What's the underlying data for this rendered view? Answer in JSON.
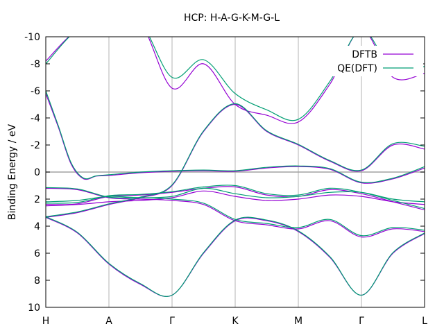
{
  "chart_data": {
    "type": "line",
    "title": "HCP: H-A-G-K-M-G-L",
    "ylabel": "Binding Energy / eV",
    "xlabel": "",
    "y_reversed": true,
    "ylim": [
      10,
      -10
    ],
    "y_ticks": [
      "-10",
      "-8",
      "-6",
      "-4",
      "-2",
      "0",
      "2",
      "4",
      "6",
      "8",
      "10"
    ],
    "x_ticks": [
      {
        "label": "H",
        "x": 0
      },
      {
        "label": "A",
        "x": 1
      },
      {
        "label": "Γ",
        "x": 2
      },
      {
        "label": "K",
        "x": 3
      },
      {
        "label": "M",
        "x": 4
      },
      {
        "label": "Γ",
        "x": 5
      },
      {
        "label": "L",
        "x": 6
      }
    ],
    "xlim": [
      0,
      6
    ],
    "grid": "vertical lines at high-symmetry points",
    "fermi_level": 0,
    "legend": {
      "placement": "top-right",
      "entries": [
        {
          "name": "DFTB",
          "color": "#9400d3"
        },
        {
          "name": "QE(DFT)",
          "color": "#009e73"
        }
      ]
    },
    "series": [
      {
        "name": "DFTB",
        "color": "#9400d3",
        "bands": [
          {
            "x": [
              0,
              0.5,
              1,
              1.5,
              2,
              2.5,
              3,
              3.5,
              4,
              4.5,
              5,
              5.5,
              6
            ],
            "y": [
              3.35,
              4.5,
              6.8,
              8.3,
              9.1,
              6.0,
              3.6,
              3.6,
              4.4,
              6.3,
              9.1,
              6.0,
              4.55
            ]
          },
          {
            "x": [
              0,
              0.5,
              1,
              1.5,
              2,
              2.5,
              3,
              3.5,
              4,
              4.5,
              5,
              5.5,
              6
            ],
            "y": [
              3.35,
              3.0,
              2.4,
              1.9,
              1.0,
              -3.0,
              -5.0,
              -3.0,
              -2.0,
              -0.8,
              -0.1,
              -2.0,
              -1.7
            ]
          },
          {
            "x": [
              0,
              0.2,
              0.4,
              0.6,
              0.8,
              1,
              1.5,
              2,
              2.5,
              3,
              3.5,
              4,
              4.5,
              5,
              5.5,
              6
            ],
            "y": [
              -5.8,
              -3.3,
              -0.6,
              0.5,
              0.3,
              0.25,
              0.05,
              -0.05,
              -0.1,
              -0.05,
              -0.3,
              -0.4,
              -0.2,
              0.8,
              0.5,
              -0.3
            ]
          },
          {
            "x": [
              0,
              0.5,
              1,
              1.5,
              2,
              2.5,
              3,
              3.5,
              4,
              4.5,
              5,
              5.5,
              6
            ],
            "y": [
              -8.2,
              -10.5,
              -11,
              -11,
              -6.2,
              -8.0,
              -5.0,
              -4.2,
              -3.7,
              -6.5,
              -10.5,
              -7.0,
              -7.3
            ]
          },
          {
            "x": [
              0,
              0.5,
              1,
              1.5,
              2,
              2.5,
              3,
              3.5,
              4,
              4.5,
              5,
              5.5,
              6
            ],
            "y": [
              2.5,
              2.4,
              2.2,
              2.1,
              1.9,
              1.4,
              1.8,
              2.1,
              2.0,
              1.7,
              1.8,
              2.2,
              2.4
            ]
          },
          {
            "x": [
              0,
              0.5,
              1,
              1.5,
              2,
              2.5,
              3,
              3.5,
              4,
              4.5,
              5,
              5.5,
              6
            ],
            "y": [
              1.2,
              1.3,
              1.9,
              2.0,
              2.1,
              2.4,
              3.6,
              3.9,
              4.2,
              3.6,
              4.8,
              4.2,
              4.4
            ]
          },
          {
            "x": [
              0,
              0.5,
              1,
              1.5,
              2,
              2.5,
              3,
              3.5,
              4,
              4.5,
              5,
              5.5,
              6
            ],
            "y": [
              2.4,
              2.35,
              1.8,
              1.7,
              1.5,
              1.2,
              1.1,
              1.7,
              1.8,
              1.3,
              1.6,
              2.2,
              2.8
            ]
          }
        ]
      },
      {
        "name": "QE(DFT)",
        "color": "#009e73",
        "bands": [
          {
            "x": [
              0,
              0.5,
              1,
              1.5,
              2,
              2.5,
              3,
              3.5,
              4,
              4.5,
              5,
              5.5,
              6
            ],
            "y": [
              3.3,
              4.45,
              6.75,
              8.25,
              9.1,
              5.95,
              3.55,
              3.55,
              4.35,
              6.25,
              9.1,
              5.95,
              4.5
            ]
          },
          {
            "x": [
              0,
              0.5,
              1,
              1.5,
              2,
              2.5,
              3,
              3.5,
              4,
              4.5,
              5,
              5.5,
              6
            ],
            "y": [
              3.3,
              2.95,
              2.35,
              1.85,
              0.95,
              -3.05,
              -5.05,
              -3.05,
              -2.05,
              -0.85,
              -0.15,
              -2.1,
              -1.9
            ]
          },
          {
            "x": [
              0,
              0.2,
              0.4,
              0.6,
              0.8,
              1,
              1.5,
              2,
              2.5,
              3,
              3.5,
              4,
              4.5,
              5,
              5.5,
              6
            ],
            "y": [
              -6.0,
              -3.4,
              -0.7,
              0.45,
              0.28,
              0.2,
              0.0,
              -0.1,
              -0.15,
              -0.1,
              -0.35,
              -0.45,
              -0.25,
              0.75,
              0.45,
              -0.4
            ]
          },
          {
            "x": [
              0,
              0.5,
              1,
              1.5,
              2,
              2.5,
              3,
              3.5,
              4,
              4.5,
              5,
              5.5,
              6
            ],
            "y": [
              -8.0,
              -10.5,
              -11,
              -11,
              -7.0,
              -8.3,
              -5.8,
              -4.6,
              -3.9,
              -6.7,
              -10.5,
              -7.5,
              -7.8
            ]
          },
          {
            "x": [
              0,
              0.5,
              1,
              1.5,
              2,
              2.5,
              3,
              3.5,
              4,
              4.5,
              5,
              5.5,
              6
            ],
            "y": [
              2.2,
              2.1,
              1.8,
              1.9,
              1.8,
              1.2,
              1.6,
              1.9,
              1.8,
              1.5,
              1.5,
              2.0,
              2.2
            ]
          },
          {
            "x": [
              0,
              0.5,
              1,
              1.5,
              2,
              2.5,
              3,
              3.5,
              4,
              4.5,
              5,
              5.5,
              6
            ],
            "y": [
              1.15,
              1.25,
              1.85,
              1.9,
              2.0,
              2.3,
              3.5,
              3.8,
              4.1,
              3.5,
              4.7,
              4.1,
              4.3
            ]
          },
          {
            "x": [
              0,
              0.5,
              1,
              1.5,
              2,
              2.5,
              3,
              3.5,
              4,
              4.5,
              5,
              5.5,
              6
            ],
            "y": [
              2.3,
              2.25,
              1.75,
              1.65,
              1.45,
              1.1,
              1.0,
              1.6,
              1.7,
              1.2,
              1.5,
              2.1,
              2.7
            ]
          }
        ]
      }
    ]
  }
}
